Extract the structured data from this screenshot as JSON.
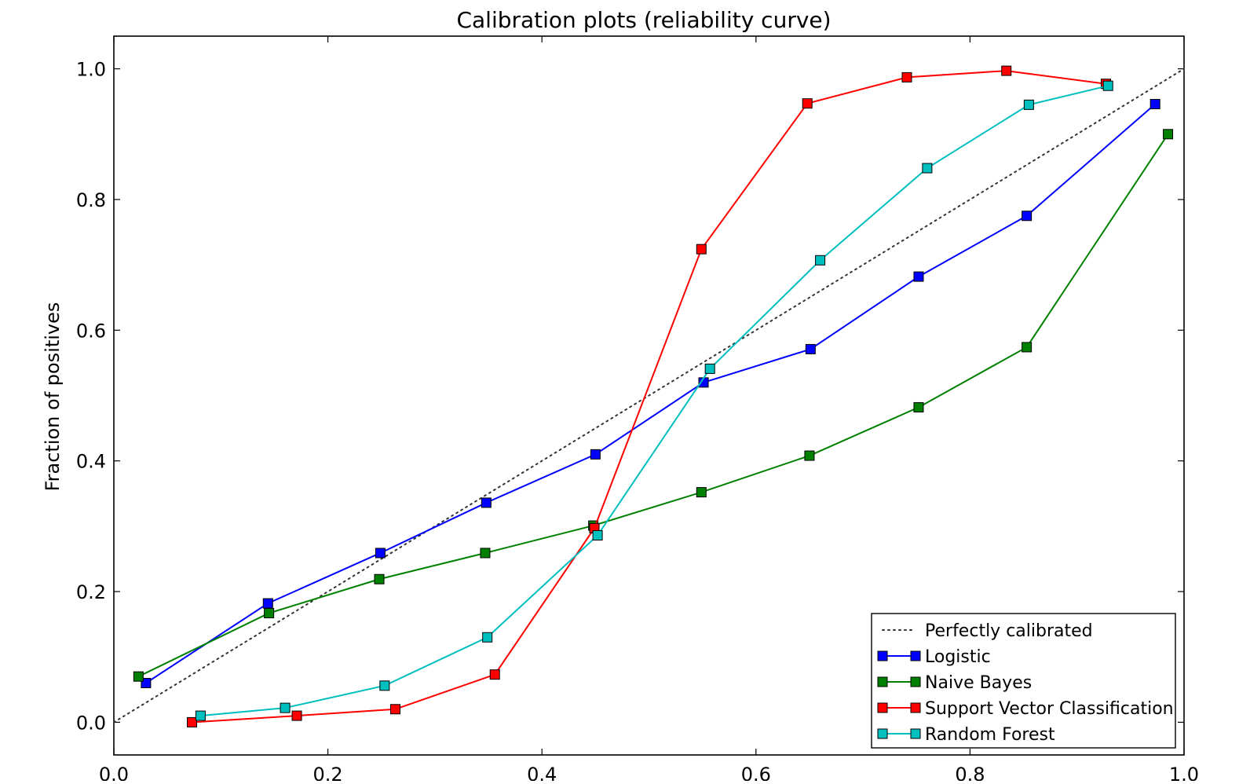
{
  "chart_data": {
    "type": "line",
    "title": "Calibration plots  (reliability curve)",
    "xlabel": "",
    "ylabel": "Fraction of positives",
    "xlim": [
      0.0,
      1.0
    ],
    "ylim": [
      -0.05,
      1.05
    ],
    "x_ticks": [
      "0.0",
      "0.2",
      "0.4",
      "0.6",
      "0.8",
      "1.0"
    ],
    "y_ticks": [
      "0.0",
      "0.2",
      "0.4",
      "0.6",
      "0.8",
      "1.0"
    ],
    "grid": false,
    "legend_position": "lower-right",
    "reference_line": {
      "name": "Perfectly calibrated",
      "x": [
        0.0,
        1.0
      ],
      "y": [
        0.0,
        1.0
      ],
      "style": "dotted",
      "color": "#333333"
    },
    "series": [
      {
        "name": "Logistic",
        "color": "#0000ff",
        "marker": "square",
        "x": [
          0.03,
          0.144,
          0.249,
          0.348,
          0.45,
          0.551,
          0.651,
          0.752,
          0.853,
          0.973
        ],
        "y": [
          0.06,
          0.182,
          0.259,
          0.336,
          0.41,
          0.52,
          0.571,
          0.682,
          0.775,
          0.946
        ]
      },
      {
        "name": "Naive Bayes",
        "color": "#008000",
        "marker": "square",
        "x": [
          0.023,
          0.145,
          0.248,
          0.347,
          0.448,
          0.549,
          0.65,
          0.752,
          0.853,
          0.985
        ],
        "y": [
          0.07,
          0.167,
          0.219,
          0.259,
          0.301,
          0.352,
          0.408,
          0.482,
          0.574,
          0.9
        ]
      },
      {
        "name": "Support Vector Classification",
        "color": "#ff0000",
        "marker": "square",
        "x": [
          0.073,
          0.171,
          0.263,
          0.356,
          0.449,
          0.549,
          0.648,
          0.741,
          0.834,
          0.927
        ],
        "y": [
          0.0,
          0.01,
          0.02,
          0.073,
          0.297,
          0.724,
          0.947,
          0.987,
          0.997,
          0.977
        ]
      },
      {
        "name": "Random Forest",
        "color": "#00bfbf",
        "marker": "square",
        "x": [
          0.081,
          0.16,
          0.253,
          0.349,
          0.452,
          0.557,
          0.66,
          0.76,
          0.855,
          0.929
        ],
        "y": [
          0.01,
          0.022,
          0.056,
          0.13,
          0.286,
          0.541,
          0.707,
          0.848,
          0.945,
          0.974
        ]
      }
    ]
  }
}
